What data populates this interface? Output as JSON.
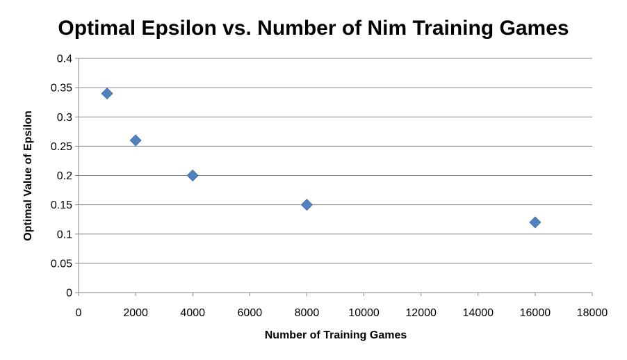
{
  "chart_data": {
    "type": "scatter",
    "title": "Optimal Epsilon vs. Number of Nim Training Games",
    "xlabel": "Number of Training Games",
    "ylabel": "Optimal Value of Epsilon",
    "xlim": [
      0,
      18000
    ],
    "ylim": [
      0,
      0.4
    ],
    "x_ticks": [
      "0",
      "2000",
      "4000",
      "6000",
      "8000",
      "10000",
      "12000",
      "14000",
      "16000",
      "18000"
    ],
    "y_ticks": [
      "0",
      "0.05",
      "0.1",
      "0.15",
      "0.2",
      "0.25",
      "0.3",
      "0.35",
      "0.4"
    ],
    "grid": "horizontal",
    "legend": "none",
    "marker": "diamond",
    "series": [
      {
        "color": "#4F81BD",
        "points": [
          {
            "x": 1000,
            "y": 0.34
          },
          {
            "x": 2000,
            "y": 0.26
          },
          {
            "x": 4000,
            "y": 0.2
          },
          {
            "x": 8000,
            "y": 0.15
          },
          {
            "x": 16000,
            "y": 0.12
          }
        ]
      }
    ]
  }
}
